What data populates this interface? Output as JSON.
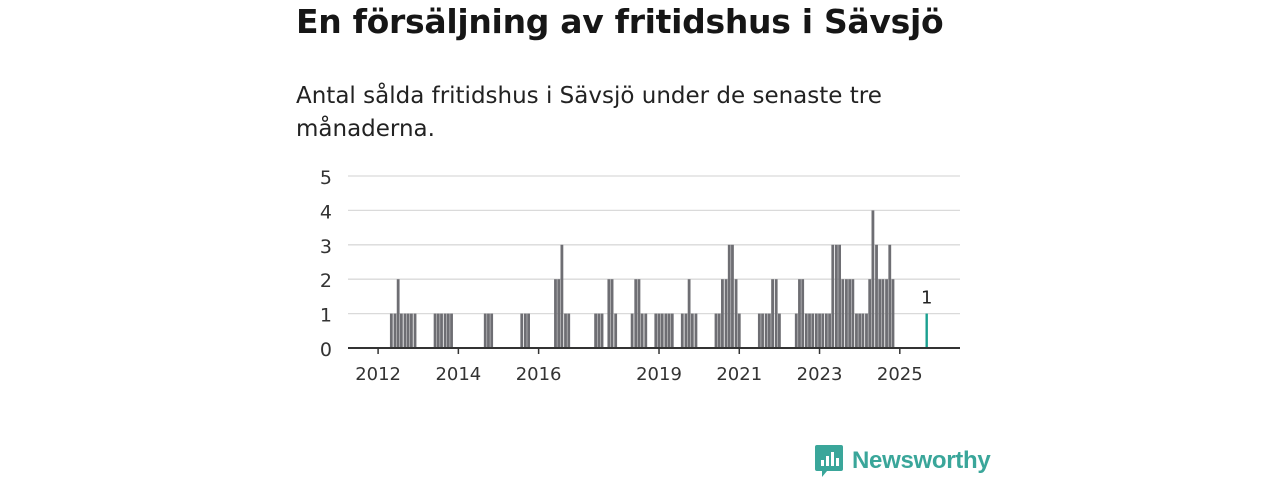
{
  "title": "En försäljning av fritidshus i Sävsjö",
  "subtitle": "Antal sålda fritidshus i Sävsjö under de senaste tre månaderna.",
  "brand": {
    "name": "Newsworthy",
    "color": "#3aa69a"
  },
  "colors": {
    "bar": "#6e6e73",
    "highlight": "#1aa090",
    "grid": "#dadada",
    "axis": "#333333"
  },
  "chart_data": {
    "type": "bar",
    "ylim": [
      0,
      5
    ],
    "yticks": [
      0,
      1,
      2,
      3,
      4,
      5
    ],
    "xlim": [
      2011.25,
      2026.5
    ],
    "xticks": [
      {
        "value": 2012,
        "label": "2012"
      },
      {
        "value": 2014,
        "label": "2014"
      },
      {
        "value": 2016,
        "label": "2016"
      },
      {
        "value": 2019,
        "label": "2019"
      },
      {
        "value": 2021,
        "label": "2021"
      },
      {
        "value": 2023,
        "label": "2023"
      },
      {
        "value": 2025,
        "label": "2025"
      }
    ],
    "bar_width_years": 0.07,
    "bars": [
      {
        "x": 2012.33,
        "v": 1
      },
      {
        "x": 2012.42,
        "v": 1
      },
      {
        "x": 2012.5,
        "v": 2
      },
      {
        "x": 2012.58,
        "v": 1
      },
      {
        "x": 2012.67,
        "v": 1
      },
      {
        "x": 2012.75,
        "v": 1
      },
      {
        "x": 2012.83,
        "v": 1
      },
      {
        "x": 2012.92,
        "v": 1
      },
      {
        "x": 2013.42,
        "v": 1
      },
      {
        "x": 2013.5,
        "v": 1
      },
      {
        "x": 2013.58,
        "v": 1
      },
      {
        "x": 2013.67,
        "v": 1
      },
      {
        "x": 2013.75,
        "v": 1
      },
      {
        "x": 2013.83,
        "v": 1
      },
      {
        "x": 2014.67,
        "v": 1
      },
      {
        "x": 2014.75,
        "v": 1
      },
      {
        "x": 2014.83,
        "v": 1
      },
      {
        "x": 2015.58,
        "v": 1
      },
      {
        "x": 2015.67,
        "v": 1
      },
      {
        "x": 2015.75,
        "v": 1
      },
      {
        "x": 2016.42,
        "v": 2
      },
      {
        "x": 2016.5,
        "v": 2
      },
      {
        "x": 2016.58,
        "v": 3
      },
      {
        "x": 2016.67,
        "v": 1
      },
      {
        "x": 2016.75,
        "v": 1
      },
      {
        "x": 2017.42,
        "v": 1
      },
      {
        "x": 2017.5,
        "v": 1
      },
      {
        "x": 2017.58,
        "v": 1
      },
      {
        "x": 2017.75,
        "v": 2
      },
      {
        "x": 2017.83,
        "v": 2
      },
      {
        "x": 2017.92,
        "v": 1
      },
      {
        "x": 2018.33,
        "v": 1
      },
      {
        "x": 2018.42,
        "v": 2
      },
      {
        "x": 2018.5,
        "v": 2
      },
      {
        "x": 2018.58,
        "v": 1
      },
      {
        "x": 2018.67,
        "v": 1
      },
      {
        "x": 2018.92,
        "v": 1
      },
      {
        "x": 2019.0,
        "v": 1
      },
      {
        "x": 2019.08,
        "v": 1
      },
      {
        "x": 2019.17,
        "v": 1
      },
      {
        "x": 2019.25,
        "v": 1
      },
      {
        "x": 2019.33,
        "v": 1
      },
      {
        "x": 2019.58,
        "v": 1
      },
      {
        "x": 2019.67,
        "v": 1
      },
      {
        "x": 2019.75,
        "v": 2
      },
      {
        "x": 2019.83,
        "v": 1
      },
      {
        "x": 2019.92,
        "v": 1
      },
      {
        "x": 2020.42,
        "v": 1
      },
      {
        "x": 2020.5,
        "v": 1
      },
      {
        "x": 2020.58,
        "v": 2
      },
      {
        "x": 2020.67,
        "v": 2
      },
      {
        "x": 2020.75,
        "v": 3
      },
      {
        "x": 2020.83,
        "v": 3
      },
      {
        "x": 2020.92,
        "v": 2
      },
      {
        "x": 2021.0,
        "v": 1
      },
      {
        "x": 2021.5,
        "v": 1
      },
      {
        "x": 2021.58,
        "v": 1
      },
      {
        "x": 2021.67,
        "v": 1
      },
      {
        "x": 2021.75,
        "v": 1
      },
      {
        "x": 2021.83,
        "v": 2
      },
      {
        "x": 2021.92,
        "v": 2
      },
      {
        "x": 2022.0,
        "v": 1
      },
      {
        "x": 2022.42,
        "v": 1
      },
      {
        "x": 2022.5,
        "v": 2
      },
      {
        "x": 2022.58,
        "v": 2
      },
      {
        "x": 2022.67,
        "v": 1
      },
      {
        "x": 2022.75,
        "v": 1
      },
      {
        "x": 2022.83,
        "v": 1
      },
      {
        "x": 2022.92,
        "v": 1
      },
      {
        "x": 2023.0,
        "v": 1
      },
      {
        "x": 2023.08,
        "v": 1
      },
      {
        "x": 2023.17,
        "v": 1
      },
      {
        "x": 2023.25,
        "v": 1
      },
      {
        "x": 2023.33,
        "v": 3
      },
      {
        "x": 2023.42,
        "v": 3
      },
      {
        "x": 2023.5,
        "v": 3
      },
      {
        "x": 2023.58,
        "v": 2
      },
      {
        "x": 2023.67,
        "v": 2
      },
      {
        "x": 2023.75,
        "v": 2
      },
      {
        "x": 2023.83,
        "v": 2
      },
      {
        "x": 2023.92,
        "v": 1
      },
      {
        "x": 2024.0,
        "v": 1
      },
      {
        "x": 2024.08,
        "v": 1
      },
      {
        "x": 2024.17,
        "v": 1
      },
      {
        "x": 2024.25,
        "v": 2
      },
      {
        "x": 2024.33,
        "v": 4
      },
      {
        "x": 2024.42,
        "v": 3
      },
      {
        "x": 2024.5,
        "v": 2
      },
      {
        "x": 2024.58,
        "v": 2
      },
      {
        "x": 2024.67,
        "v": 2
      },
      {
        "x": 2024.75,
        "v": 3
      },
      {
        "x": 2024.83,
        "v": 2
      }
    ],
    "highlight": {
      "x": 2025.67,
      "v": 1,
      "label": "1"
    }
  }
}
